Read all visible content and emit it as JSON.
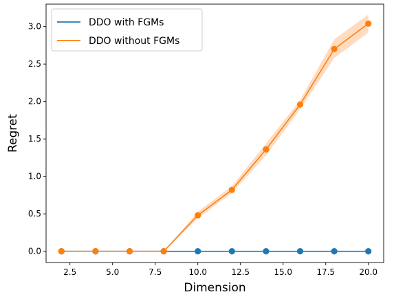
{
  "chart_data": {
    "type": "line",
    "xlabel": "Dimension",
    "ylabel": "Regret",
    "xlim": [
      1.1,
      20.9
    ],
    "ylim": [
      -0.15,
      3.3
    ],
    "xticks": [
      2.5,
      5.0,
      7.5,
      10.0,
      12.5,
      15.0,
      17.5,
      20.0
    ],
    "xtick_labels": [
      "2.5",
      "5.0",
      "7.5",
      "10.0",
      "12.5",
      "15.0",
      "17.5",
      "20.0"
    ],
    "yticks": [
      0.0,
      0.5,
      1.0,
      1.5,
      2.0,
      2.5,
      3.0
    ],
    "ytick_labels": [
      "0.0",
      "0.5",
      "1.0",
      "1.5",
      "2.0",
      "2.5",
      "3.0"
    ],
    "grid": false,
    "legend_position": "top-left",
    "x": [
      2,
      4,
      6,
      8,
      10,
      12,
      14,
      16,
      18,
      20
    ],
    "series": [
      {
        "name": "DDO with FGMs",
        "color": "#1f77b4",
        "values": [
          0,
          0,
          0,
          0,
          0,
          0,
          0,
          0,
          0,
          0
        ]
      },
      {
        "name": "DDO without FGMs",
        "color": "#ff7f0e",
        "band_color": "#ffd8b8",
        "values": [
          0,
          0,
          0,
          0,
          0.48,
          0.82,
          1.36,
          1.96,
          2.7,
          3.04
        ],
        "lower": [
          0,
          0,
          0,
          0,
          0.44,
          0.78,
          1.28,
          1.9,
          2.58,
          2.92
        ],
        "upper": [
          0,
          0,
          0,
          0,
          0.53,
          0.87,
          1.44,
          2.02,
          2.83,
          3.16
        ]
      }
    ]
  }
}
